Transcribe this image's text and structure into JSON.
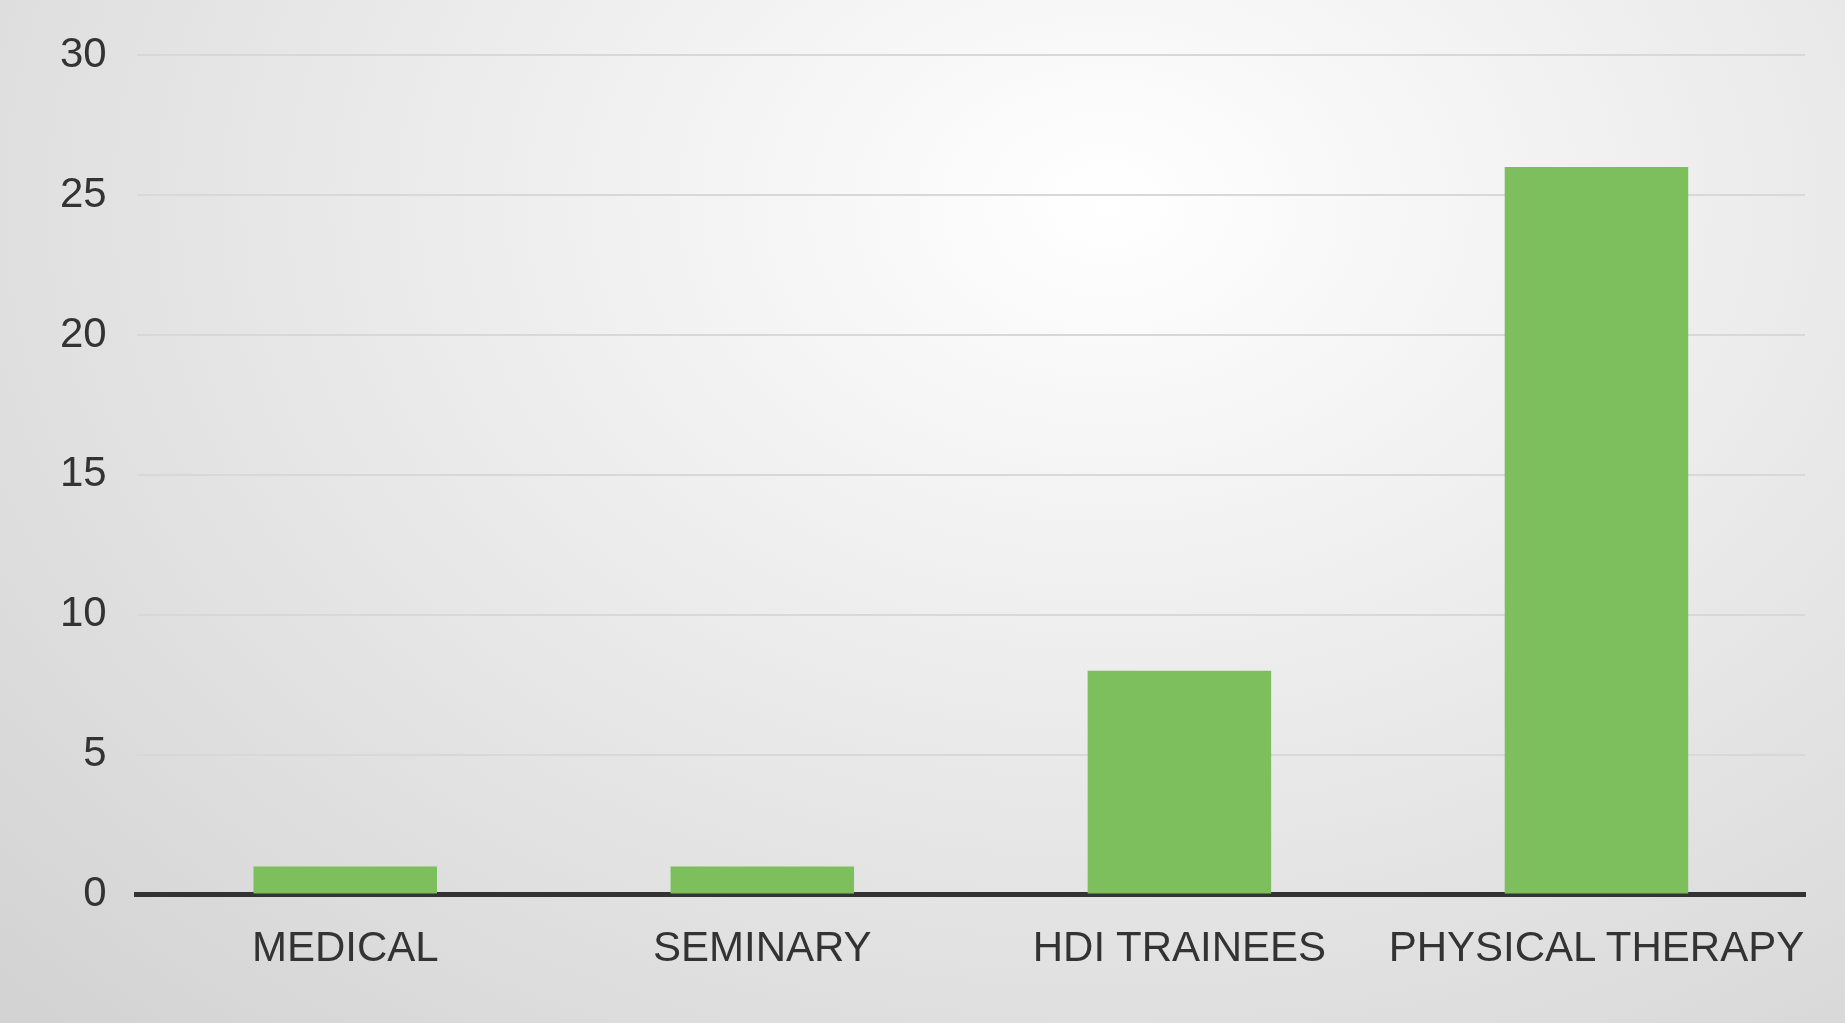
{
  "chart_data": {
    "type": "bar",
    "categories": [
      "MEDICAL",
      "SEMINARY",
      "HDI TRAINEES",
      "PHYSICAL THERAPY"
    ],
    "values": [
      1,
      1,
      8,
      26
    ],
    "color": "#7dbf5c",
    "ylim": [
      0,
      30
    ],
    "yticks": [
      0,
      5,
      10,
      15,
      20,
      25,
      30
    ],
    "grid": "y"
  }
}
